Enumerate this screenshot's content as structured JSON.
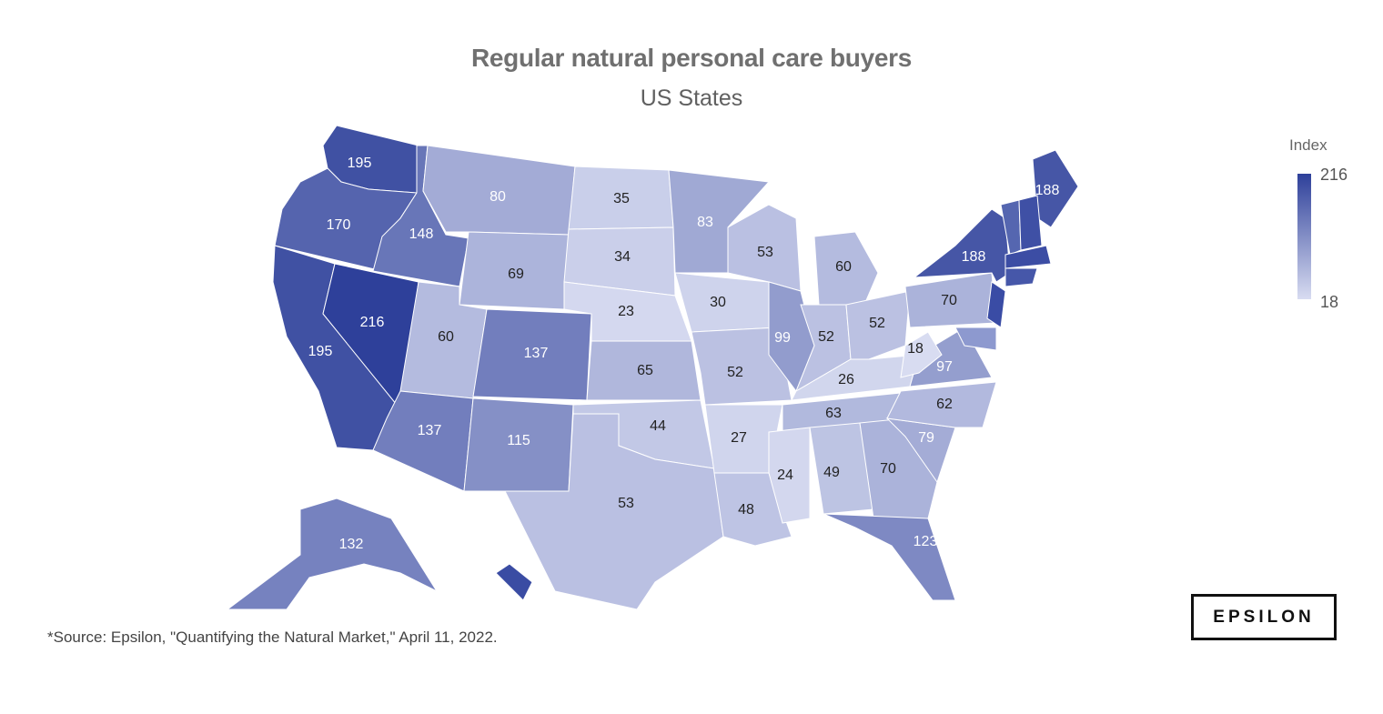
{
  "chart_data": {
    "type": "choropleth",
    "title": "Regular natural personal care buyers",
    "subtitle": "US States",
    "legend": {
      "title": "Index",
      "max": 216,
      "min": 18,
      "placement": "right"
    },
    "color_scale": {
      "low": "#d8dcf1",
      "high": "#2e409a"
    },
    "values": {
      "WA": 195,
      "OR": 170,
      "CA": 195,
      "NV": 216,
      "ID": 148,
      "MT": 80,
      "WY": 69,
      "UT": 60,
      "CO": 137,
      "AZ": 137,
      "NM": 115,
      "ND": 35,
      "SD": 34,
      "NE": 23,
      "KS": 65,
      "OK": 44,
      "TX": 53,
      "MN": 83,
      "IA": 30,
      "MO": 52,
      "AR": 27,
      "LA": 48,
      "WI": 53,
      "IL": 99,
      "MI": 60,
      "IN": 52,
      "OH": 52,
      "KY": 26,
      "TN": 63,
      "MS": 24,
      "AL": 49,
      "GA": 70,
      "FL": 123,
      "SC": 79,
      "NC": 62,
      "VA": 97,
      "WV": 18,
      "PA": 70,
      "NY": 188,
      "ME": 188,
      "AK": 132
    }
  },
  "source": "*Source: Epsilon, \"Quantifying the Natural Market,\" April 11, 2022.",
  "logo": "EPSILON"
}
